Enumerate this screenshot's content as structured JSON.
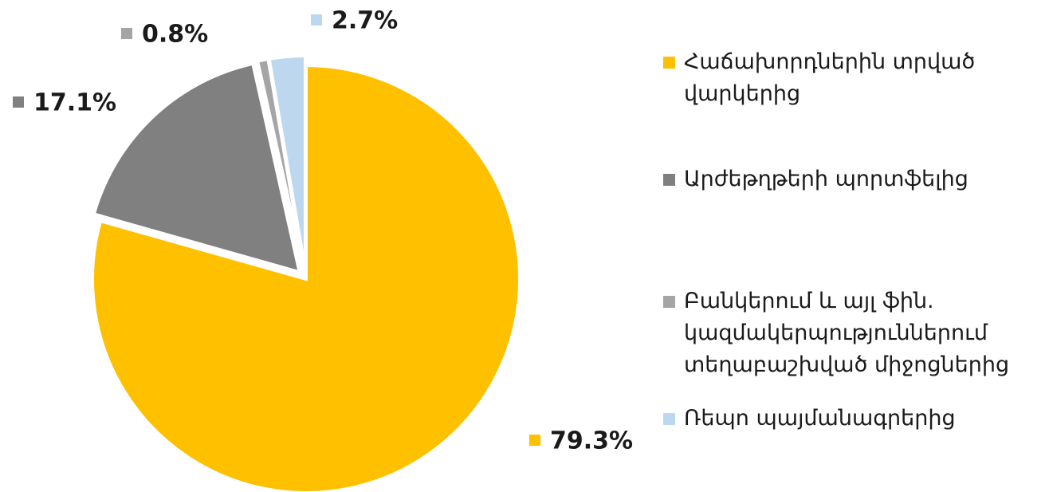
{
  "chart_data": {
    "type": "pie",
    "categories": [
      "Հաճախորդներին տրված վարկերից",
      "Արժեթղթերի պորտֆելից",
      "Բանկերում և այլ ֆին. կազմակերպություններում տեղաբաշխված միջոցներից",
      "Ռեպո պայմանագրերից"
    ],
    "values": [
      79.3,
      17.1,
      0.8,
      2.7
    ],
    "value_labels": [
      "79.3%",
      "17.1%",
      "0.8%",
      "2.7%"
    ],
    "colors": [
      "#FFC000",
      "#808080",
      "#A5A5A5",
      "#BDD7EE"
    ],
    "legend": "right"
  }
}
